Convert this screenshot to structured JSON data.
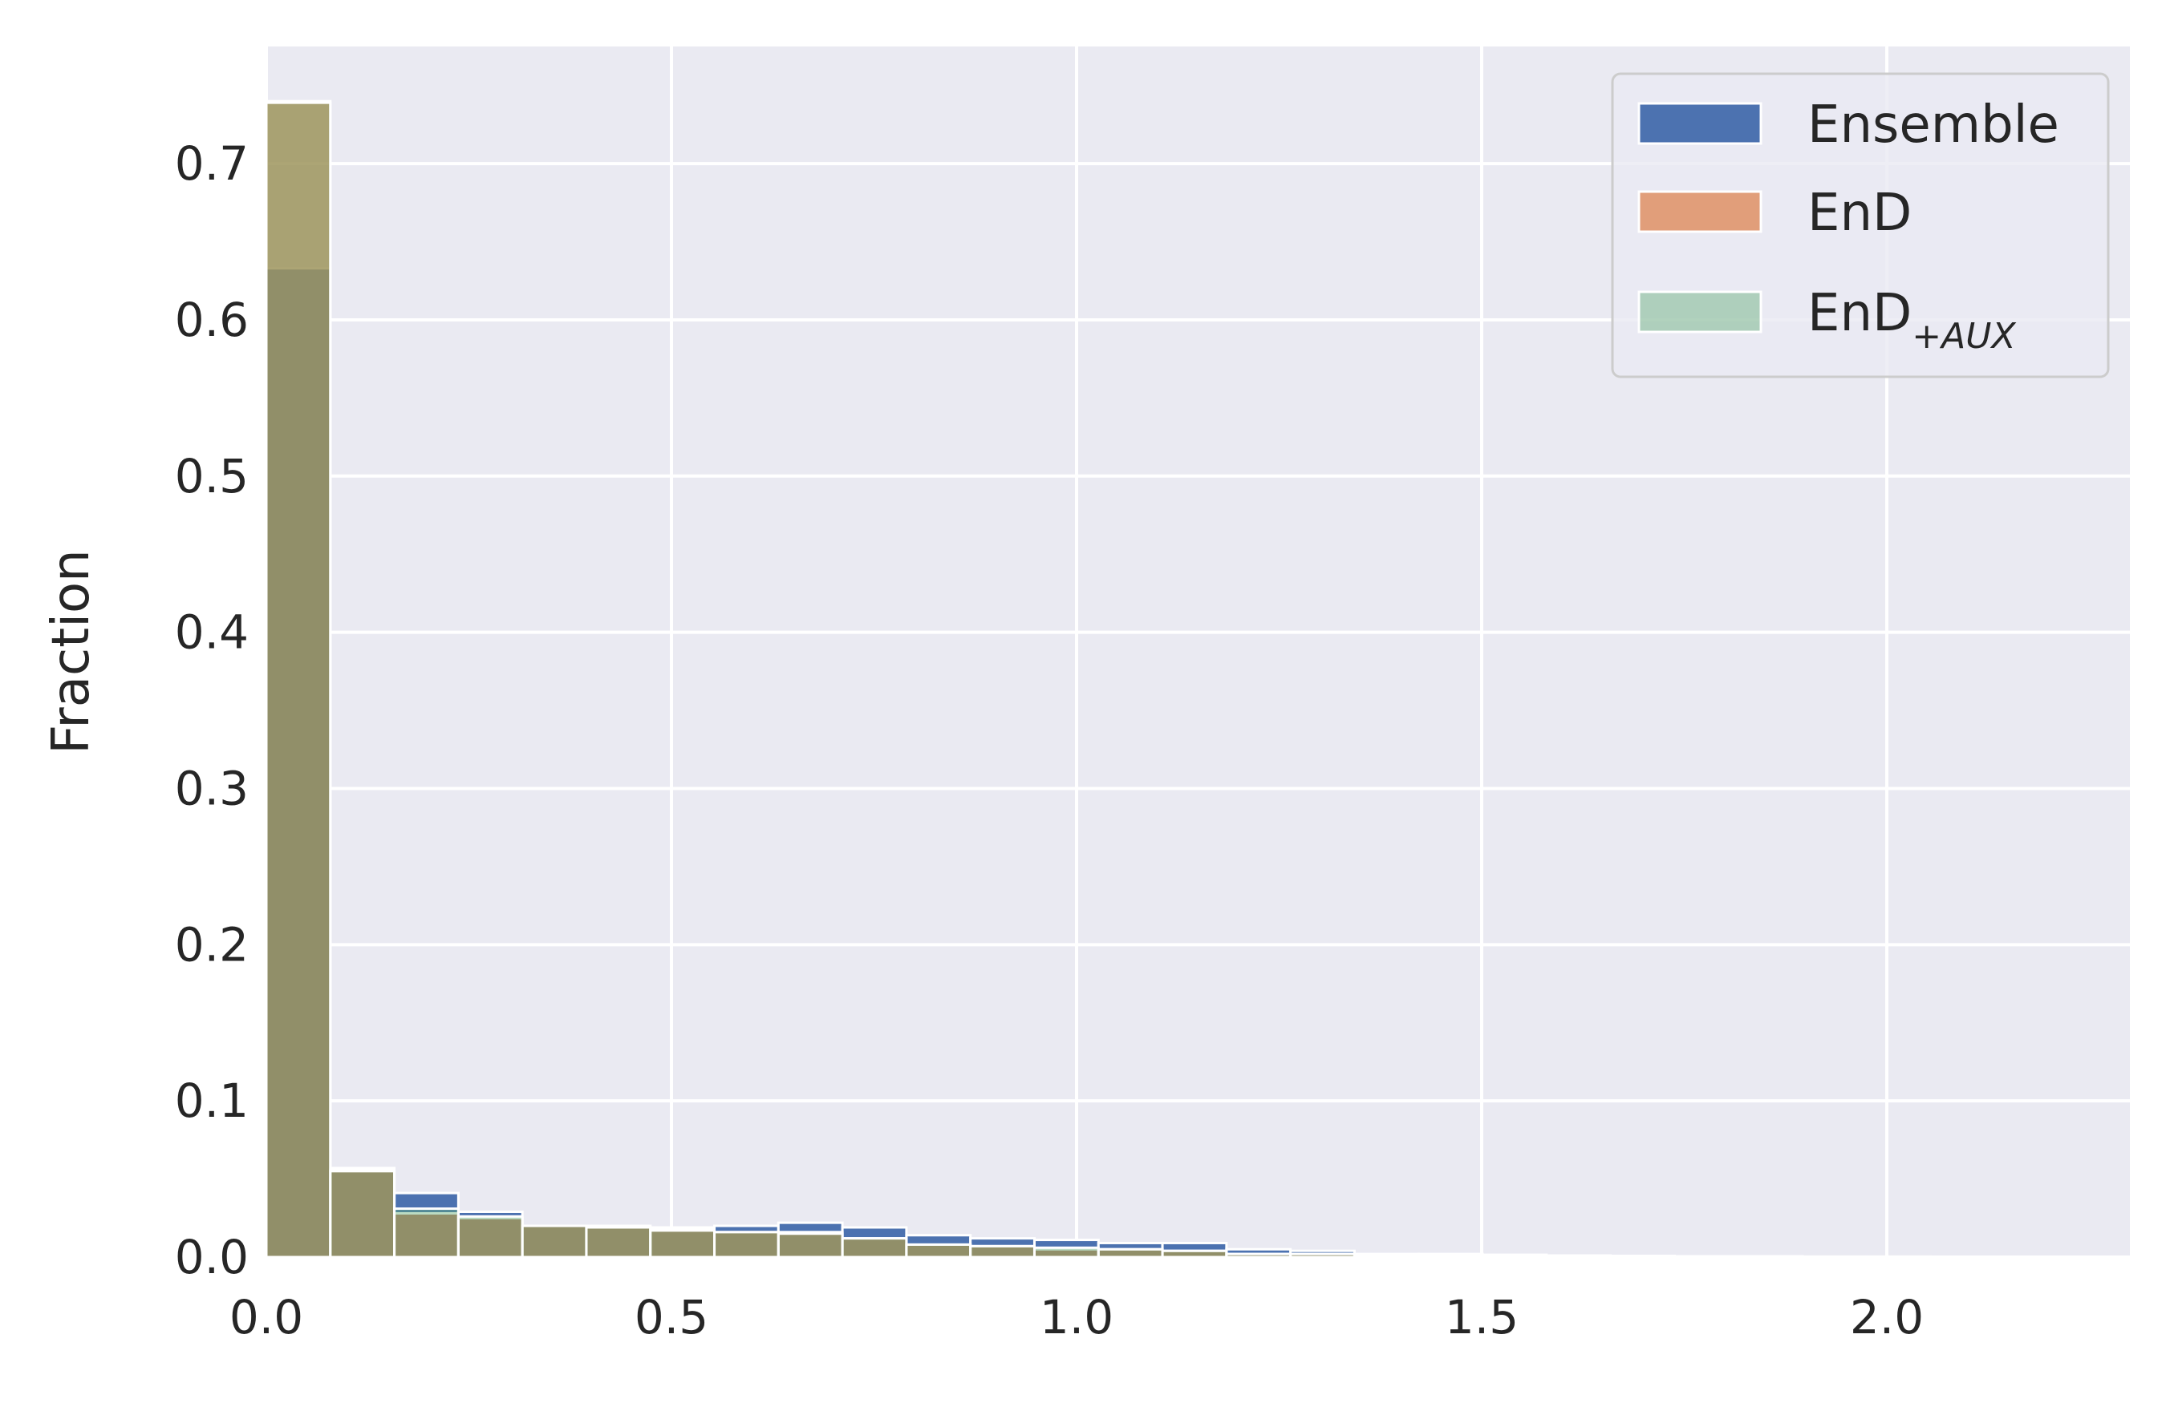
{
  "chart_data": {
    "type": "bar",
    "xlabel": "",
    "ylabel": "Fraction",
    "xlim": [
      0.0,
      2.3
    ],
    "ylim": [
      0.0,
      0.775
    ],
    "xticks": [
      "0.0",
      "0.5",
      "1.0",
      "1.5",
      "2.0"
    ],
    "xtick_values": [
      0.0,
      0.5,
      1.0,
      1.5,
      2.0
    ],
    "yticks": [
      "0.0",
      "0.1",
      "0.2",
      "0.3",
      "0.4",
      "0.5",
      "0.6",
      "0.7"
    ],
    "ytick_values": [
      0.0,
      0.1,
      0.2,
      0.3,
      0.4,
      0.5,
      0.6,
      0.7
    ],
    "grid": true,
    "legend_position": "top-right",
    "background": "#eaeaf2",
    "bin_edges": [
      0.0,
      0.079,
      0.158,
      0.237,
      0.316,
      0.395,
      0.474,
      0.553,
      0.632,
      0.711,
      0.79,
      0.869,
      0.948,
      1.027,
      1.106,
      1.185,
      1.264,
      1.343,
      1.422,
      1.501,
      1.58,
      1.659,
      1.738,
      1.817,
      1.896,
      1.975,
      2.054,
      2.133,
      2.212,
      2.291
    ],
    "series": [
      {
        "name": "Ensemble",
        "color": "#4c72b0",
        "alpha": 1.0,
        "values": [
          0.633,
          0.057,
          0.041,
          0.029,
          0.02,
          0.019,
          0.019,
          0.02,
          0.022,
          0.019,
          0.014,
          0.012,
          0.011,
          0.009,
          0.009,
          0.005,
          0.004,
          0.002,
          0.002,
          0.0015,
          0.001,
          0.0008,
          0.0005,
          0.0005,
          0.0003,
          0.0003,
          0.0002,
          0.0002,
          0.0001
        ]
      },
      {
        "name": "EnD",
        "color": "#dd8452",
        "alpha": 0.75,
        "values": [
          0.74,
          0.056,
          0.028,
          0.025,
          0.02,
          0.02,
          0.018,
          0.016,
          0.016,
          0.012,
          0.008,
          0.007,
          0.005,
          0.005,
          0.004,
          0.002,
          0.002,
          0.001,
          0.001,
          0.0008,
          0.0005,
          0.0004,
          0.0003,
          0.0002,
          0.0002,
          0.0001,
          0.0001,
          0.0001,
          0.0001
        ]
      },
      {
        "name": "EnD",
        "name_subscript": "+AUX",
        "color": "#55a868",
        "alpha": 0.4,
        "values": [
          0.739,
          0.055,
          0.031,
          0.026,
          0.02,
          0.019,
          0.017,
          0.016,
          0.015,
          0.012,
          0.008,
          0.007,
          0.006,
          0.005,
          0.004,
          0.002,
          0.002,
          0.001,
          0.001,
          0.0008,
          0.0005,
          0.0004,
          0.0003,
          0.0002,
          0.0002,
          0.0001,
          0.0001,
          0.0001,
          0.0001
        ]
      }
    ]
  }
}
